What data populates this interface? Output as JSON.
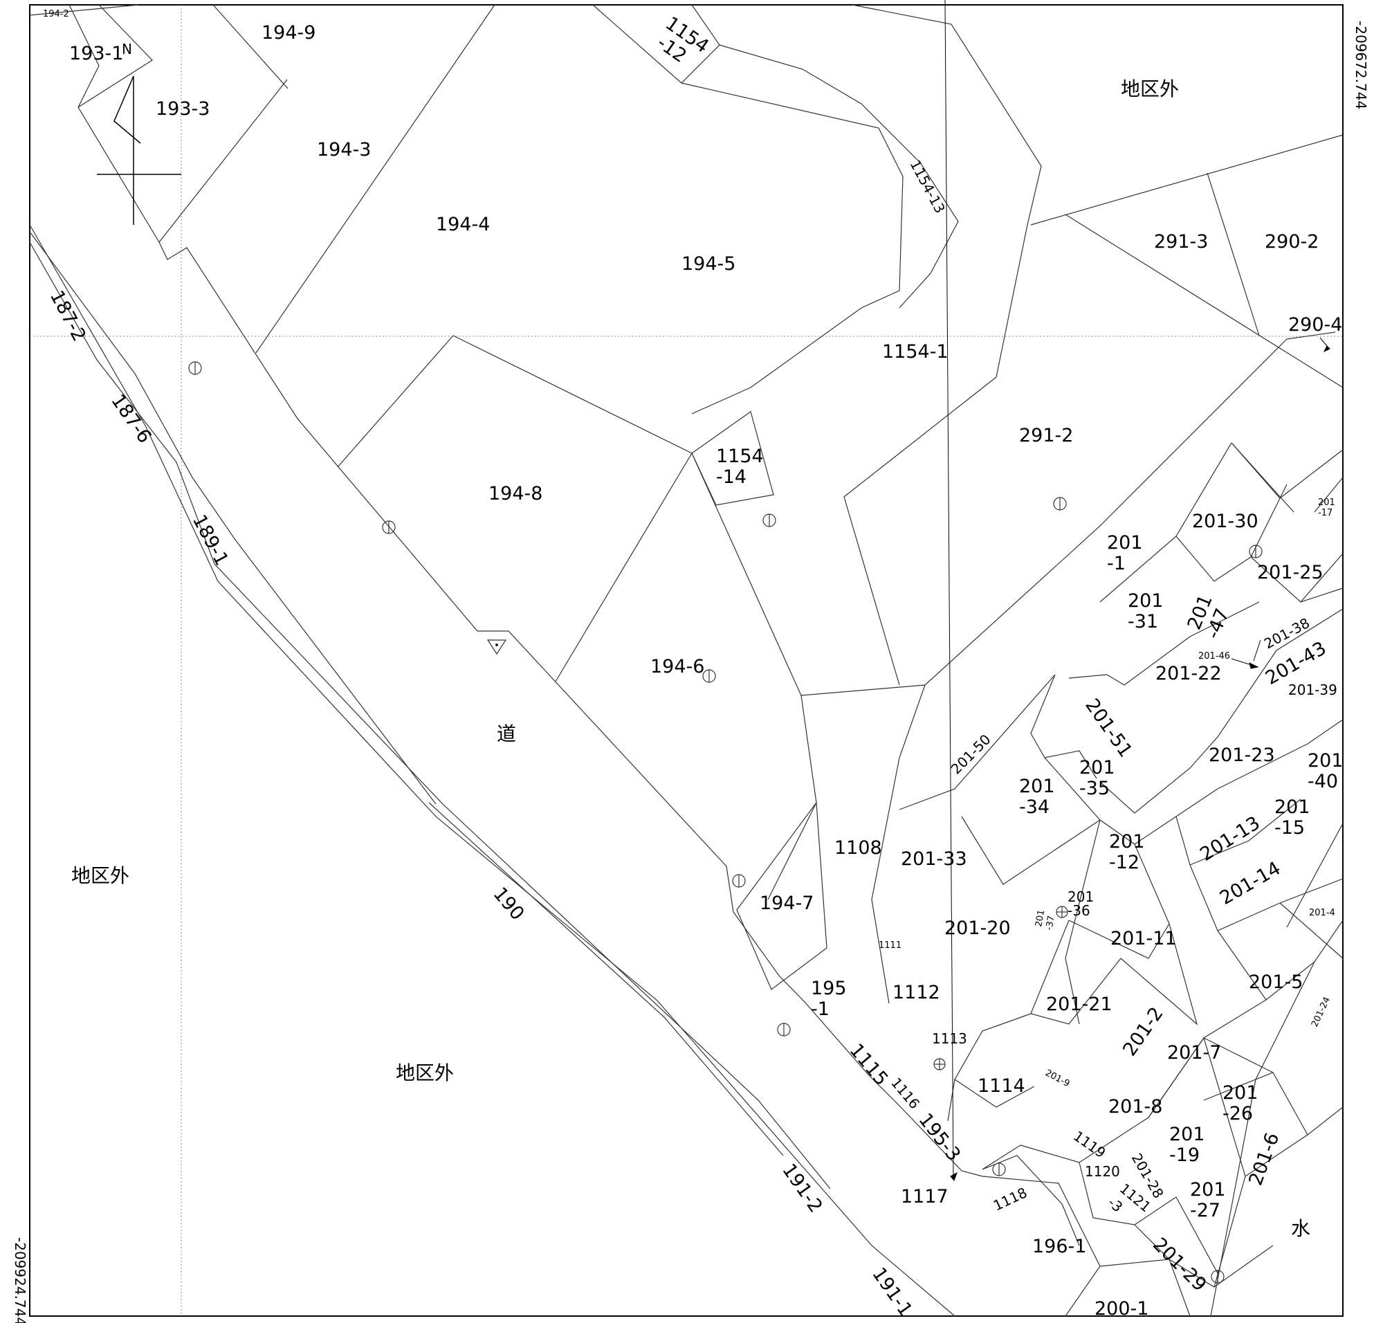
{
  "map": {
    "coordinates": {
      "top_right": "-209672.744",
      "bottom_left": "-209924.744"
    },
    "north_label": "N",
    "outside_district": "地区外",
    "road_label": "道",
    "water_label": "水",
    "parcels": {
      "p194_2": "194-2",
      "p193_1": "193-1",
      "p194_9": "194-9",
      "p193_3": "193-3",
      "p1154_12a": "1154",
      "p1154_12b": "-12",
      "p194_3": "194-3",
      "p194_4": "194-4",
      "p194_5": "194-5",
      "p1154_13": "1154-13",
      "p187_2": "187-2",
      "p1154_1": "1154-1",
      "p291_3": "291-3",
      "p290_2": "290-2",
      "p290_4": "290-4",
      "p187_6": "187-6",
      "p291_2": "291-2",
      "p1154_14a": "1154",
      "p1154_14b": "-14",
      "p194_8": "194-8",
      "p189_1": "189-1",
      "p201_30": "201-30",
      "p201_17a": "201",
      "p201_17b": "-17",
      "p201_1a": "201",
      "p201_1b": "-1",
      "p201_25": "201-25",
      "p201_31a": "201",
      "p201_31b": "-31",
      "p201_47a": "201",
      "p201_47b": "-47",
      "p201_38": "201-38",
      "p201_46": "201-46",
      "p201_43": "201-43",
      "p194_6": "194-6",
      "p201_22": "201-22",
      "p201_39": "201-39",
      "p201_51": "201-51",
      "p201_50": "201-50",
      "p201_35a": "201",
      "p201_35b": "-35",
      "p201_23": "201-23",
      "p201_40a": "201",
      "p201_40b": "-40",
      "p201_34a": "201",
      "p201_34b": "-34",
      "p201_15a": "201",
      "p201_15b": "-15",
      "p201_13": "201-13",
      "p1108": "1108",
      "p201_33": "201-33",
      "p201_12a": "201",
      "p201_12b": "-12",
      "p201_14": "201-14",
      "p190": "190",
      "p194_7": "194-7",
      "p201_36a": "201",
      "p201_36b": "-36",
      "p201_4": "201-4",
      "p201_20": "201-20",
      "p201_37a": "201",
      "p201_37b": "-37",
      "p201_11": "201-11",
      "p1111": "1111",
      "p201_5": "201-5",
      "p1112": "1112",
      "p195_1a": "195",
      "p195_1b": "-1",
      "p201_21": "201-21",
      "p201_24": "201-24",
      "p201_2": "201-2",
      "p1113": "1113",
      "p201_7": "201-7",
      "p1115": "1115",
      "p1114": "1114",
      "p201_9": "201-9",
      "p1116": "1116",
      "p201_26a": "201",
      "p201_26b": "-26",
      "p201_8": "201-8",
      "p195_3": "195-3",
      "p201_19a": "201",
      "p201_19b": "-19",
      "p201_6": "201-6",
      "p1119": "1119",
      "p1120": "1120",
      "p201_28": "201-28",
      "p191_2": "191-2",
      "p1117": "1117",
      "p1121a": "1121",
      "p1121b": "-3",
      "p201_27a": "201",
      "p201_27b": "-27",
      "p1118": "1118",
      "p196_1": "196-1",
      "p201_29": "201-29",
      "p191_1": "191-1",
      "p200_1": "200-1"
    }
  }
}
